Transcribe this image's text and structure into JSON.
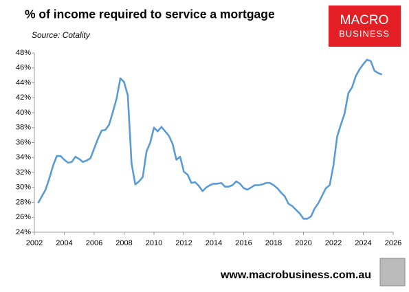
{
  "chart_data": {
    "type": "line",
    "title": "% of income required to service a mortgage",
    "subtitle": "Source: Cotality",
    "color": "#5b9bd5",
    "x": [
      2002.25,
      2002.5,
      2002.75,
      2003,
      2003.25,
      2003.5,
      2003.75,
      2004,
      2004.25,
      2004.5,
      2004.75,
      2005,
      2005.25,
      2005.5,
      2005.75,
      2006,
      2006.25,
      2006.5,
      2006.75,
      2007,
      2007.25,
      2007.5,
      2007.75,
      2008,
      2008.25,
      2008.5,
      2008.75,
      2009,
      2009.25,
      2009.5,
      2009.75,
      2010,
      2010.25,
      2010.5,
      2010.75,
      2011,
      2011.25,
      2011.5,
      2011.75,
      2012,
      2012.25,
      2012.5,
      2012.75,
      2013,
      2013.25,
      2013.5,
      2013.75,
      2014,
      2014.25,
      2014.5,
      2014.75,
      2015,
      2015.25,
      2015.5,
      2015.75,
      2016,
      2016.25,
      2016.5,
      2016.75,
      2017,
      2017.25,
      2017.5,
      2017.75,
      2018,
      2018.25,
      2018.5,
      2018.75,
      2019,
      2019.25,
      2019.5,
      2019.75,
      2020,
      2020.25,
      2020.5,
      2020.75,
      2021,
      2021.25,
      2021.5,
      2021.75,
      2022,
      2022.25,
      2022.5,
      2022.75,
      2023,
      2023.25,
      2023.5,
      2023.75,
      2024,
      2024.25,
      2024.5,
      2024.75,
      2025,
      2025.25
    ],
    "values": [
      27.9,
      28.8,
      29.7,
      31.2,
      32.9,
      34.2,
      34.2,
      33.7,
      33.3,
      33.4,
      34.1,
      33.8,
      33.4,
      33.6,
      33.9,
      35.2,
      36.5,
      37.6,
      37.7,
      38.4,
      40.1,
      41.9,
      44.6,
      44.1,
      42.3,
      33.2,
      30.4,
      30.8,
      31.4,
      34.8,
      36.0,
      38.0,
      37.5,
      38.1,
      37.5,
      36.9,
      35.8,
      33.7,
      34.1,
      32.1,
      31.7,
      30.6,
      30.7,
      30.2,
      29.5,
      30.0,
      30.3,
      30.5,
      30.5,
      30.6,
      30.1,
      30.1,
      30.3,
      30.8,
      30.5,
      29.9,
      29.7,
      30.0,
      30.3,
      30.3,
      30.4,
      30.6,
      30.6,
      30.3,
      29.9,
      29.3,
      28.8,
      27.8,
      27.5,
      27.0,
      26.5,
      25.8,
      25.8,
      26.1,
      27.2,
      27.9,
      28.9,
      29.9,
      30.3,
      32.9,
      36.8,
      38.4,
      39.9,
      42.6,
      43.4,
      44.9,
      45.8,
      46.5,
      47.1,
      46.9,
      45.6,
      45.3,
      45.1
    ],
    "xlim": [
      2002,
      2026
    ],
    "xticks": [
      2002,
      2004,
      2006,
      2008,
      2010,
      2012,
      2014,
      2016,
      2018,
      2020,
      2022,
      2024,
      2026
    ],
    "ylim": [
      24,
      48
    ],
    "yticks": [
      {
        "value": 24,
        "label": "24%"
      },
      {
        "value": 26,
        "label": "26%"
      },
      {
        "value": 28,
        "label": "28%"
      },
      {
        "value": 30,
        "label": "30%"
      },
      {
        "value": 32,
        "label": "32%"
      },
      {
        "value": 34,
        "label": "34%"
      },
      {
        "value": 36,
        "label": "36%"
      },
      {
        "value": 38,
        "label": "38%"
      },
      {
        "value": 40,
        "label": "40%"
      },
      {
        "value": 42,
        "label": "42%"
      },
      {
        "value": 44,
        "label": "44%"
      },
      {
        "value": 46,
        "label": "46%"
      },
      {
        "value": 48,
        "label": "48%"
      }
    ],
    "grid": false
  },
  "logo": {
    "line1": "MACRO",
    "line2": "BUSINESS"
  },
  "footer": "www.macrobusiness.com.au"
}
